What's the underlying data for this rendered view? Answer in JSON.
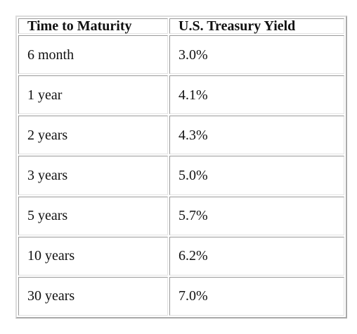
{
  "table": {
    "headers": [
      "Time to Maturity",
      "U.S. Treasury Yield"
    ],
    "rows": [
      [
        "6 month",
        "3.0%"
      ],
      [
        "1 year",
        "4.1%"
      ],
      [
        "2 years",
        "4.3%"
      ],
      [
        "3 years",
        "5.0%"
      ],
      [
        "5 years",
        "5.7%"
      ],
      [
        "10 years",
        "6.2%"
      ],
      [
        "30 years",
        "7.0%"
      ]
    ]
  },
  "chart_data": {
    "type": "table",
    "columns": [
      "Time to Maturity",
      "U.S. Treasury Yield"
    ],
    "rows": [
      {
        "Time to Maturity": "6 month",
        "U.S. Treasury Yield": 3.0
      },
      {
        "Time to Maturity": "1 year",
        "U.S. Treasury Yield": 4.1
      },
      {
        "Time to Maturity": "2 years",
        "U.S. Treasury Yield": 4.3
      },
      {
        "Time to Maturity": "3 years",
        "U.S. Treasury Yield": 5.0
      },
      {
        "Time to Maturity": "5 years",
        "U.S. Treasury Yield": 5.7
      },
      {
        "Time to Maturity": "10 years",
        "U.S. Treasury Yield": 6.2
      },
      {
        "Time to Maturity": "30 years",
        "U.S. Treasury Yield": 7.0
      }
    ]
  }
}
